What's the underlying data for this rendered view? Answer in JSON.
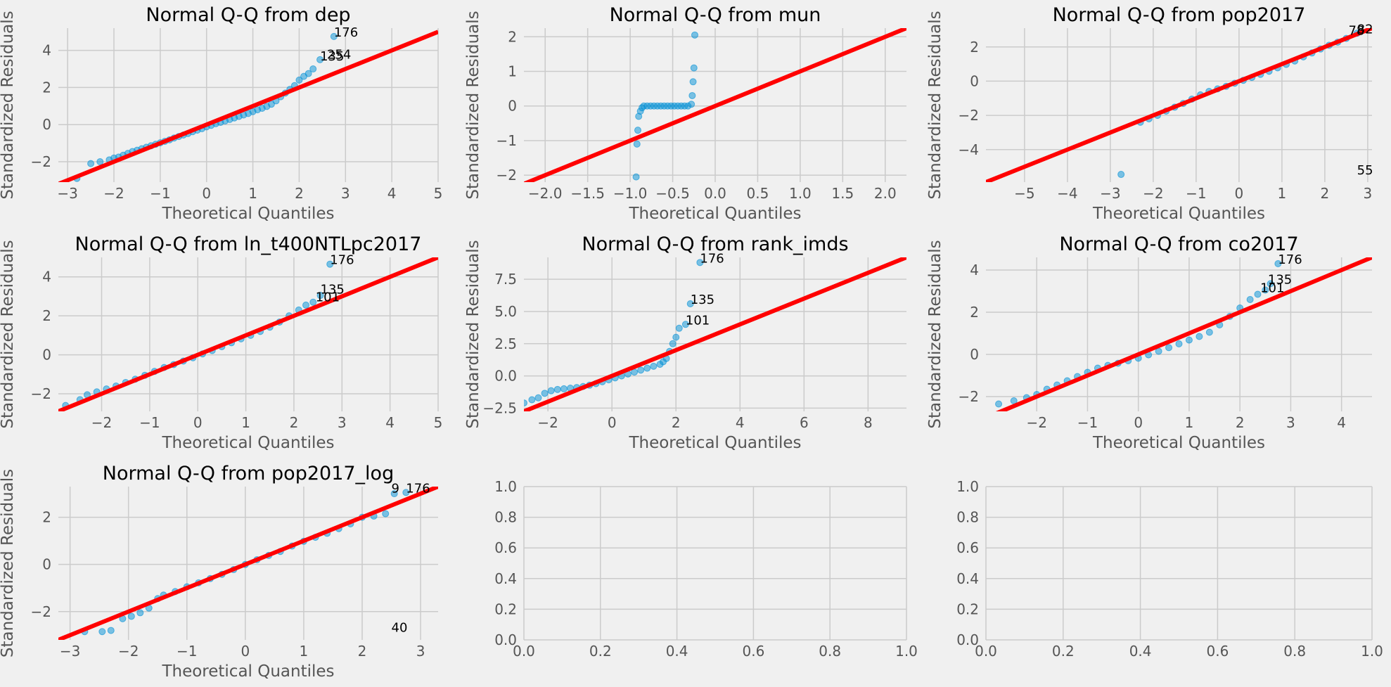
{
  "chart_data": [
    {
      "type": "scatter",
      "title": "Normal Q-Q from dep",
      "xlabel": "Theoretical Quantiles",
      "ylabel": "Standardized Residuals",
      "xlim": [
        -3.2,
        5.0
      ],
      "ylim": [
        -3.1,
        5.2
      ],
      "xticks": [
        -3,
        -2,
        -1,
        0,
        1,
        2,
        3,
        4,
        5
      ],
      "yticks": [
        -2,
        0,
        2,
        4
      ],
      "grid": true,
      "reference_line": [
        [
          -3.2,
          -3.2
        ],
        [
          5.0,
          5.0
        ]
      ],
      "points": [
        [
          -2.8,
          -2.9
        ],
        [
          -2.5,
          -2.1
        ],
        [
          -2.3,
          -2.0
        ],
        [
          -2.1,
          -1.9
        ],
        [
          -2.0,
          -1.8
        ],
        [
          -1.9,
          -1.75
        ],
        [
          -1.8,
          -1.65
        ],
        [
          -1.7,
          -1.55
        ],
        [
          -1.6,
          -1.45
        ],
        [
          -1.5,
          -1.38
        ],
        [
          -1.4,
          -1.3
        ],
        [
          -1.3,
          -1.22
        ],
        [
          -1.2,
          -1.14
        ],
        [
          -1.1,
          -1.06
        ],
        [
          -1.0,
          -0.98
        ],
        [
          -0.9,
          -0.9
        ],
        [
          -0.8,
          -0.82
        ],
        [
          -0.7,
          -0.72
        ],
        [
          -0.6,
          -0.64
        ],
        [
          -0.5,
          -0.56
        ],
        [
          -0.4,
          -0.48
        ],
        [
          -0.3,
          -0.38
        ],
        [
          -0.2,
          -0.3
        ],
        [
          -0.1,
          -0.22
        ],
        [
          0.0,
          -0.12
        ],
        [
          0.1,
          -0.04
        ],
        [
          0.2,
          0.05
        ],
        [
          0.3,
          0.12
        ],
        [
          0.4,
          0.2
        ],
        [
          0.5,
          0.28
        ],
        [
          0.6,
          0.36
        ],
        [
          0.7,
          0.44
        ],
        [
          0.8,
          0.52
        ],
        [
          0.9,
          0.6
        ],
        [
          1.0,
          0.7
        ],
        [
          1.1,
          0.8
        ],
        [
          1.2,
          0.88
        ],
        [
          1.3,
          0.98
        ],
        [
          1.4,
          1.1
        ],
        [
          1.5,
          1.28
        ],
        [
          1.6,
          1.5
        ],
        [
          1.7,
          1.7
        ],
        [
          1.8,
          1.9
        ],
        [
          1.9,
          2.1
        ],
        [
          2.0,
          2.4
        ],
        [
          2.1,
          2.6
        ],
        [
          2.2,
          2.75
        ],
        [
          2.3,
          3.0
        ],
        [
          2.45,
          3.5
        ],
        [
          2.75,
          4.75
        ]
      ],
      "annotations": [
        {
          "x": 2.75,
          "y": 4.75,
          "text": "176"
        },
        {
          "x": 2.6,
          "y": 3.55,
          "text": "254"
        },
        {
          "x": 2.45,
          "y": 3.45,
          "text": "135"
        }
      ]
    },
    {
      "type": "scatter",
      "title": "Normal Q-Q from mun",
      "xlabel": "Theoretical Quantiles",
      "ylabel": "Standardized Residuals",
      "xlim": [
        -2.25,
        2.25
      ],
      "ylim": [
        -2.2,
        2.25
      ],
      "xticks": [
        -2.0,
        -1.5,
        -1.0,
        -0.5,
        0.0,
        0.5,
        1.0,
        1.5,
        2.0
      ],
      "xtick_labels": [
        "-2.0",
        "-1.5",
        "-1.0",
        "-0.5",
        "0.0",
        "0.5",
        "1.0",
        "1.5",
        "2.0"
      ],
      "yticks": [
        -2,
        -1,
        0,
        1,
        2
      ],
      "grid": true,
      "reference_line": [
        [
          -2.25,
          -2.25
        ],
        [
          2.25,
          2.25
        ]
      ],
      "points": [
        [
          -0.93,
          -2.05
        ],
        [
          -0.92,
          -1.1
        ],
        [
          -0.91,
          -0.7
        ],
        [
          -0.9,
          -0.3
        ],
        [
          -0.88,
          -0.15
        ],
        [
          -0.86,
          -0.05
        ],
        [
          -0.84,
          0.0
        ],
        [
          -0.8,
          0.0
        ],
        [
          -0.76,
          0.0
        ],
        [
          -0.72,
          0.0
        ],
        [
          -0.68,
          0.0
        ],
        [
          -0.64,
          0.0
        ],
        [
          -0.6,
          0.0
        ],
        [
          -0.56,
          0.0
        ],
        [
          -0.52,
          0.0
        ],
        [
          -0.48,
          0.0
        ],
        [
          -0.44,
          0.0
        ],
        [
          -0.4,
          0.0
        ],
        [
          -0.36,
          0.0
        ],
        [
          -0.32,
          0.0
        ],
        [
          -0.28,
          0.05
        ],
        [
          -0.27,
          0.3
        ],
        [
          -0.26,
          0.7
        ],
        [
          -0.25,
          1.1
        ],
        [
          -0.24,
          2.05
        ]
      ],
      "annotations": []
    },
    {
      "type": "scatter",
      "title": "Normal Q-Q from pop2017",
      "xlabel": "Theoretical Quantiles",
      "ylabel": "Standardized Residuals",
      "xlim": [
        -5.9,
        3.1
      ],
      "ylim": [
        -5.9,
        3.1
      ],
      "xticks": [
        -5,
        -4,
        -3,
        -2,
        -1,
        0,
        1,
        2,
        3
      ],
      "yticks": [
        -4,
        -2,
        0,
        2
      ],
      "grid": true,
      "reference_line": [
        [
          -5.9,
          -5.9
        ],
        [
          3.1,
          3.1
        ]
      ],
      "points": [
        [
          -2.75,
          -5.45
        ],
        [
          -2.3,
          -2.4
        ],
        [
          -2.1,
          -2.2
        ],
        [
          -1.9,
          -2.0
        ],
        [
          -1.7,
          -1.75
        ],
        [
          -1.5,
          -1.52
        ],
        [
          -1.3,
          -1.3
        ],
        [
          -1.1,
          -1.05
        ],
        [
          -0.9,
          -0.8
        ],
        [
          -0.7,
          -0.6
        ],
        [
          -0.5,
          -0.45
        ],
        [
          -0.3,
          -0.3
        ],
        [
          -0.1,
          -0.12
        ],
        [
          0.1,
          0.05
        ],
        [
          0.3,
          0.22
        ],
        [
          0.5,
          0.4
        ],
        [
          0.7,
          0.58
        ],
        [
          0.9,
          0.78
        ],
        [
          1.1,
          0.98
        ],
        [
          1.3,
          1.18
        ],
        [
          1.5,
          1.42
        ],
        [
          1.7,
          1.65
        ],
        [
          1.9,
          1.88
        ],
        [
          2.1,
          2.1
        ],
        [
          2.3,
          2.28
        ],
        [
          2.5,
          2.5
        ],
        [
          2.75,
          2.8
        ]
      ],
      "annotations": [
        {
          "x": 2.75,
          "y": 2.8,
          "text": "82"
        },
        {
          "x": 2.55,
          "y": 2.7,
          "text": "78"
        },
        {
          "x": 2.75,
          "y": -5.45,
          "text": "55"
        }
      ]
    },
    {
      "type": "scatter",
      "title": "Normal Q-Q from ln_t400NTLpc2017",
      "xlabel": "Theoretical Quantiles",
      "ylabel": "Standardized Residuals",
      "xlim": [
        -2.9,
        5.0
      ],
      "ylim": [
        -2.9,
        5.0
      ],
      "xticks": [
        -2,
        -1,
        0,
        1,
        2,
        3,
        4,
        5
      ],
      "yticks": [
        -2,
        0,
        2,
        4
      ],
      "grid": true,
      "reference_line": [
        [
          -2.9,
          -2.9
        ],
        [
          5.0,
          5.0
        ]
      ],
      "points": [
        [
          -2.75,
          -2.6
        ],
        [
          -2.45,
          -2.3
        ],
        [
          -2.3,
          -2.05
        ],
        [
          -2.1,
          -1.9
        ],
        [
          -1.9,
          -1.75
        ],
        [
          -1.7,
          -1.6
        ],
        [
          -1.5,
          -1.42
        ],
        [
          -1.3,
          -1.25
        ],
        [
          -1.1,
          -1.05
        ],
        [
          -0.9,
          -0.85
        ],
        [
          -0.7,
          -0.65
        ],
        [
          -0.5,
          -0.5
        ],
        [
          -0.3,
          -0.32
        ],
        [
          -0.1,
          -0.15
        ],
        [
          0.1,
          0.05
        ],
        [
          0.3,
          0.22
        ],
        [
          0.5,
          0.42
        ],
        [
          0.7,
          0.62
        ],
        [
          0.9,
          0.82
        ],
        [
          1.1,
          1.0
        ],
        [
          1.3,
          1.2
        ],
        [
          1.5,
          1.42
        ],
        [
          1.7,
          1.68
        ],
        [
          1.9,
          2.0
        ],
        [
          2.1,
          2.3
        ],
        [
          2.25,
          2.55
        ],
        [
          2.4,
          2.7
        ],
        [
          2.55,
          3.05
        ],
        [
          2.75,
          4.65
        ]
      ],
      "annotations": [
        {
          "x": 2.75,
          "y": 4.65,
          "text": "176"
        },
        {
          "x": 2.55,
          "y": 3.15,
          "text": "135"
        },
        {
          "x": 2.45,
          "y": 2.75,
          "text": "101"
        }
      ]
    },
    {
      "type": "scatter",
      "title": "Normal Q-Q from rank_imds",
      "xlabel": "Theoretical Quantiles",
      "ylabel": "Standardized Residuals",
      "xlim": [
        -2.75,
        9.2
      ],
      "ylim": [
        -2.75,
        9.2
      ],
      "xticks": [
        -2,
        0,
        2,
        4,
        6,
        8
      ],
      "yticks": [
        -2.5,
        0.0,
        2.5,
        5.0,
        7.5
      ],
      "ytick_labels": [
        "-2.5",
        "0.0",
        "2.5",
        "5.0",
        "7.5"
      ],
      "grid": true,
      "reference_line": [
        [
          -2.75,
          -2.75
        ],
        [
          9.2,
          9.2
        ]
      ],
      "points": [
        [
          -2.75,
          -2.1
        ],
        [
          -2.5,
          -1.85
        ],
        [
          -2.3,
          -1.7
        ],
        [
          -2.1,
          -1.35
        ],
        [
          -1.9,
          -1.15
        ],
        [
          -1.7,
          -1.05
        ],
        [
          -1.5,
          -1.0
        ],
        [
          -1.3,
          -0.95
        ],
        [
          -1.1,
          -0.9
        ],
        [
          -0.9,
          -0.82
        ],
        [
          -0.7,
          -0.72
        ],
        [
          -0.5,
          -0.6
        ],
        [
          -0.3,
          -0.45
        ],
        [
          -0.1,
          -0.3
        ],
        [
          0.1,
          -0.15
        ],
        [
          0.3,
          0.0
        ],
        [
          0.5,
          0.15
        ],
        [
          0.7,
          0.3
        ],
        [
          0.9,
          0.45
        ],
        [
          1.1,
          0.6
        ],
        [
          1.3,
          0.75
        ],
        [
          1.5,
          0.9
        ],
        [
          1.6,
          1.1
        ],
        [
          1.7,
          1.35
        ],
        [
          1.8,
          1.9
        ],
        [
          1.9,
          2.5
        ],
        [
          2.0,
          3.0
        ],
        [
          2.1,
          3.7
        ],
        [
          2.3,
          4.0
        ],
        [
          2.45,
          5.6
        ],
        [
          2.75,
          8.8
        ]
      ],
      "annotations": [
        {
          "x": 2.75,
          "y": 8.8,
          "text": "176"
        },
        {
          "x": 2.45,
          "y": 5.6,
          "text": "135"
        },
        {
          "x": 2.3,
          "y": 4.0,
          "text": "101"
        }
      ]
    },
    {
      "type": "scatter",
      "title": "Normal Q-Q from co2017",
      "xlabel": "Theoretical Quantiles",
      "ylabel": "Standardized Residuals",
      "xlim": [
        -3.0,
        4.6
      ],
      "ylim": [
        -2.7,
        4.6
      ],
      "xticks": [
        -2,
        -1,
        0,
        1,
        2,
        3,
        4
      ],
      "yticks": [
        -2,
        0,
        2,
        4
      ],
      "grid": true,
      "reference_line": [
        [
          -3.0,
          -3.0
        ],
        [
          4.6,
          4.6
        ]
      ],
      "points": [
        [
          -2.75,
          -2.35
        ],
        [
          -2.45,
          -2.2
        ],
        [
          -2.2,
          -2.05
        ],
        [
          -2.0,
          -1.9
        ],
        [
          -1.8,
          -1.65
        ],
        [
          -1.6,
          -1.45
        ],
        [
          -1.4,
          -1.25
        ],
        [
          -1.2,
          -1.05
        ],
        [
          -1.0,
          -0.85
        ],
        [
          -0.8,
          -0.65
        ],
        [
          -0.6,
          -0.52
        ],
        [
          -0.4,
          -0.42
        ],
        [
          -0.2,
          -0.3
        ],
        [
          0.0,
          -0.18
        ],
        [
          0.2,
          -0.02
        ],
        [
          0.4,
          0.15
        ],
        [
          0.6,
          0.32
        ],
        [
          0.8,
          0.5
        ],
        [
          1.0,
          0.68
        ],
        [
          1.2,
          0.85
        ],
        [
          1.4,
          1.05
        ],
        [
          1.6,
          1.4
        ],
        [
          1.8,
          1.8
        ],
        [
          2.0,
          2.2
        ],
        [
          2.2,
          2.6
        ],
        [
          2.35,
          2.85
        ],
        [
          2.5,
          3.05
        ],
        [
          2.6,
          3.35
        ],
        [
          2.75,
          4.3
        ]
      ],
      "annotations": [
        {
          "x": 2.75,
          "y": 4.3,
          "text": "176"
        },
        {
          "x": 2.55,
          "y": 3.35,
          "text": "135"
        },
        {
          "x": 2.4,
          "y": 2.95,
          "text": "101"
        }
      ]
    },
    {
      "type": "scatter",
      "title": "Normal Q-Q from pop2017_log",
      "xlabel": "Theoretical Quantiles",
      "ylabel": "Standardized Residuals",
      "xlim": [
        -3.2,
        3.3
      ],
      "ylim": [
        -3.2,
        3.3
      ],
      "xticks": [
        -3,
        -2,
        -1,
        0,
        1,
        2,
        3
      ],
      "yticks": [
        -2,
        0,
        2
      ],
      "grid": true,
      "reference_line": [
        [
          -3.2,
          -3.2
        ],
        [
          3.3,
          3.3
        ]
      ],
      "points": [
        [
          -2.75,
          -2.85
        ],
        [
          -2.45,
          -2.85
        ],
        [
          -2.3,
          -2.8
        ],
        [
          -2.1,
          -2.3
        ],
        [
          -1.95,
          -2.2
        ],
        [
          -1.8,
          -2.05
        ],
        [
          -1.65,
          -1.85
        ],
        [
          -1.5,
          -1.45
        ],
        [
          -1.4,
          -1.3
        ],
        [
          -1.2,
          -1.15
        ],
        [
          -1.0,
          -0.95
        ],
        [
          -0.8,
          -0.78
        ],
        [
          -0.6,
          -0.6
        ],
        [
          -0.4,
          -0.42
        ],
        [
          -0.2,
          -0.22
        ],
        [
          0.0,
          0.0
        ],
        [
          0.2,
          0.2
        ],
        [
          0.4,
          0.38
        ],
        [
          0.6,
          0.55
        ],
        [
          0.8,
          0.78
        ],
        [
          1.0,
          0.98
        ],
        [
          1.2,
          1.15
        ],
        [
          1.4,
          1.32
        ],
        [
          1.6,
          1.52
        ],
        [
          1.8,
          1.72
        ],
        [
          2.0,
          2.0
        ],
        [
          2.2,
          2.05
        ],
        [
          2.4,
          2.15
        ],
        [
          2.55,
          3.0
        ],
        [
          2.75,
          3.05
        ]
      ],
      "annotations": [
        {
          "x": 2.5,
          "y": 3.05,
          "text": "9"
        },
        {
          "x": 2.75,
          "y": 3.05,
          "text": "176"
        },
        {
          "x": 2.5,
          "y": -2.85,
          "text": "40"
        }
      ]
    },
    {
      "type": "scatter",
      "title": "",
      "xlabel": "",
      "ylabel": "",
      "xlim": [
        0.0,
        1.0
      ],
      "ylim": [
        0.0,
        1.0
      ],
      "xticks": [
        0.0,
        0.2,
        0.4,
        0.6,
        0.8,
        1.0
      ],
      "xtick_labels": [
        "0.0",
        "0.2",
        "0.4",
        "0.6",
        "0.8",
        "1.0"
      ],
      "yticks": [
        0.0,
        0.2,
        0.4,
        0.6,
        0.8,
        1.0
      ],
      "ytick_labels": [
        "0.0",
        "0.2",
        "0.4",
        "0.6",
        "0.8",
        "1.0"
      ],
      "grid": true,
      "points": [],
      "annotations": []
    },
    {
      "type": "scatter",
      "title": "",
      "xlabel": "",
      "ylabel": "",
      "xlim": [
        0.0,
        1.0
      ],
      "ylim": [
        0.0,
        1.0
      ],
      "xticks": [
        0.0,
        0.2,
        0.4,
        0.6,
        0.8,
        1.0
      ],
      "xtick_labels": [
        "0.0",
        "0.2",
        "0.4",
        "0.6",
        "0.8",
        "1.0"
      ],
      "yticks": [
        0.0,
        0.2,
        0.4,
        0.6,
        0.8,
        1.0
      ],
      "ytick_labels": [
        "0.0",
        "0.2",
        "0.4",
        "0.6",
        "0.8",
        "1.0"
      ],
      "grid": true,
      "points": [],
      "annotations": []
    }
  ]
}
